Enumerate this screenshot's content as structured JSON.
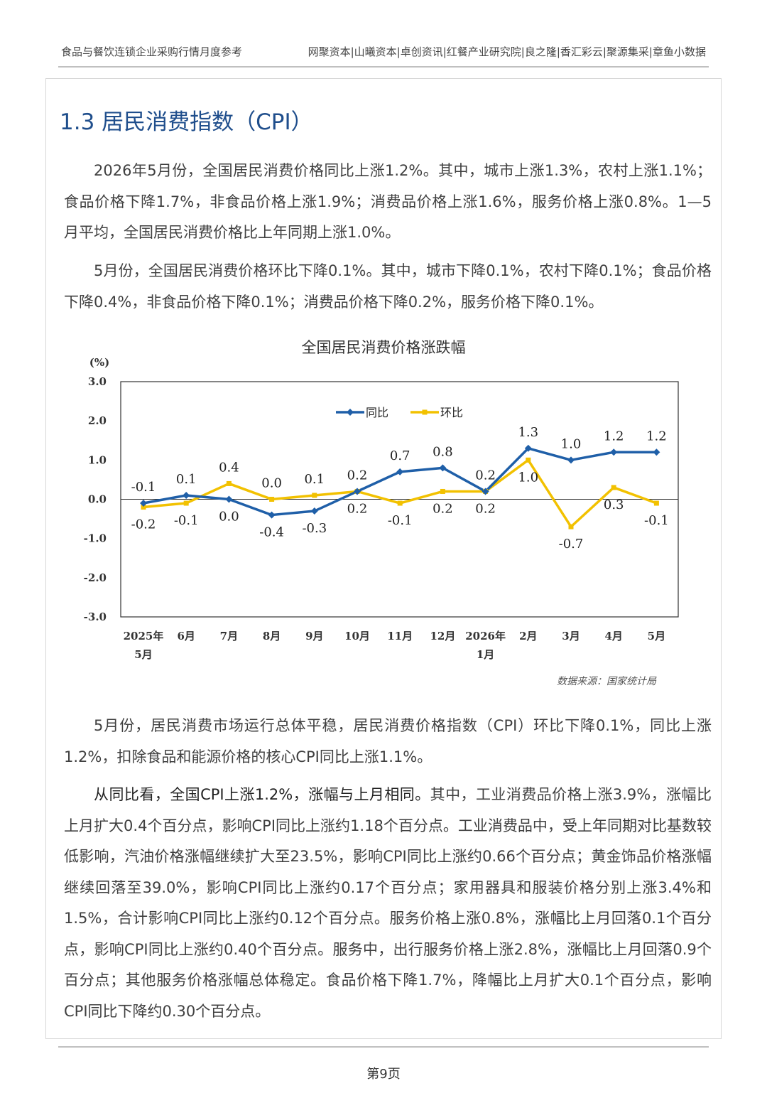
{
  "header": {
    "left": "食品与餐饮连锁企业采购行情月度参考",
    "right": "网聚资本|山曦资本|卓创资讯|红餐产业研究院|良之隆|香汇彩云|聚源集采|章鱼小数据"
  },
  "section_title": "1.3 居民消费指数（CPI）",
  "paragraphs": {
    "p1": "2026年5月份，全国居民消费价格同比上涨1.2%。其中，城市上涨1.3%，农村上涨1.1%；食品价格下降1.7%，非食品价格上涨1.9%；消费品价格上涨1.6%，服务价格上涨0.8%。1—5月平均，全国居民消费价格比上年同期上涨1.0%。",
    "p2": "5月份，全国居民消费价格环比下降0.1%。其中，城市下降0.1%，农村下降0.1%；食品价格下降0.4%，非食品价格下降0.1%；消费品价格下降0.2%，服务价格下降0.1%。",
    "p3": "5月份，居民消费市场运行总体平稳，居民消费价格指数（CPI）环比下降0.1%，同比上涨1.2%，扣除食品和能源价格的核心CPI同比上涨1.1%。",
    "p4_lead": "从同比看，全国CPI上涨1.2%，涨幅与上月相同。",
    "p4_rest": "其中，工业消费品价格上涨3.9%，涨幅比上月扩大0.4个百分点，影响CPI同比上涨约1.18个百分点。工业消费品中，受上年同期对比基数较低影响，汽油价格涨幅继续扩大至23.5%，影响CPI同比上涨约0.66个百分点；黄金饰品价格涨幅继续回落至39.0%，影响CPI同比上涨约0.17个百分点；家用器具和服装价格分别上涨3.4%和1.5%，合计影响CPI同比上涨约0.12个百分点。服务价格上涨0.8%，涨幅比上月回落0.1个百分点，影响CPI同比上涨约0.40个百分点。服务中，出行服务价格上涨2.8%，涨幅比上月回落0.9个百分点；其他服务价格涨幅总体稳定。食品价格下降1.7%，降幅比上月扩大0.1个百分点，影响CPI同比下降约0.30个百分点。"
  },
  "chart_data": {
    "type": "line",
    "title": "全国居民消费价格涨跌幅",
    "ylabel": "(%)",
    "ylim": [
      -3.0,
      3.0
    ],
    "yticks": [
      "3.0",
      "2.0",
      "1.0",
      "0.0",
      "-1.0",
      "-2.0",
      "-3.0"
    ],
    "categories": [
      [
        "2025年",
        "5月"
      ],
      [
        "6月"
      ],
      [
        "7月"
      ],
      [
        "8月"
      ],
      [
        "9月"
      ],
      [
        "10月"
      ],
      [
        "11月"
      ],
      [
        "12月"
      ],
      [
        "2026年",
        "1月"
      ],
      [
        "2月"
      ],
      [
        "3月"
      ],
      [
        "4月"
      ],
      [
        "5月"
      ]
    ],
    "series": [
      {
        "name": "同比",
        "color": "#1f5fa8",
        "values": [
          -0.1,
          0.1,
          0.0,
          -0.4,
          -0.3,
          0.2,
          0.7,
          0.8,
          0.2,
          1.3,
          1.0,
          1.2,
          1.2
        ],
        "labels": [
          "-0.1",
          "0.1",
          "0.0",
          "-0.4",
          "-0.3",
          "0.2",
          "0.7",
          "0.8",
          "0.2",
          "1.3",
          "1.0",
          "1.2",
          "1.2"
        ]
      },
      {
        "name": "环比",
        "color": "#f2c100",
        "values": [
          -0.2,
          -0.1,
          0.4,
          0.0,
          0.1,
          0.2,
          -0.1,
          0.2,
          0.2,
          1.0,
          -0.7,
          0.3,
          -0.1
        ],
        "labels": [
          "-0.2",
          "-0.1",
          "0.4",
          "0.0",
          "0.1",
          "0.2",
          "-0.1",
          "0.2",
          "0.2",
          "1.0",
          "-0.7",
          "0.3",
          "-0.1"
        ]
      }
    ],
    "legend": "top-right",
    "source": "数据来源：国家统计局"
  },
  "page_number": "第9页"
}
